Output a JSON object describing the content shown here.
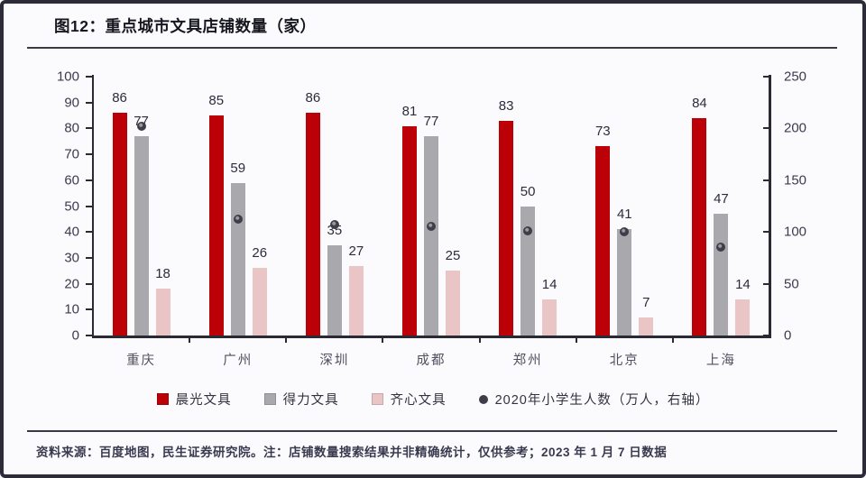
{
  "figure": {
    "title": "图12：重点城市文具店铺数量（家）",
    "footnote": "资料来源：百度地图，民生证券研究院。注：店铺数量搜索结果并非精确统计，仅供参考；2023 年 1 月 7 日数据"
  },
  "colors": {
    "red": "#bb0007",
    "gray": "#a8a8ad",
    "pink": "#eac5c6",
    "dot": "#3e3e48",
    "axis_line": "#2a2a34",
    "tick_text": "#3b3b4e",
    "value_text": "#2c2c3c",
    "background": "#fbfbfe"
  },
  "chart_data": {
    "type": "bar",
    "title": "图12：重点城市文具店铺数量（家）",
    "categories": [
      "重庆",
      "广州",
      "深圳",
      "成都",
      "郑州",
      "北京",
      "上海"
    ],
    "series": [
      {
        "name": "晨光文具",
        "type": "bar",
        "axis": "left",
        "color_key": "red",
        "values": [
          86,
          85,
          86,
          81,
          83,
          73,
          84
        ]
      },
      {
        "name": "得力文具",
        "type": "bar",
        "axis": "left",
        "color_key": "gray",
        "values": [
          77,
          59,
          35,
          77,
          50,
          41,
          47
        ]
      },
      {
        "name": "齐心文具",
        "type": "bar",
        "axis": "left",
        "color_key": "pink",
        "values": [
          18,
          26,
          27,
          25,
          14,
          7,
          14
        ]
      },
      {
        "name": "2020年小学生人数（万人，右轴）",
        "type": "scatter",
        "axis": "right",
        "color_key": "dot",
        "values": [
          202,
          112,
          107,
          105,
          101,
          100,
          85
        ]
      }
    ],
    "left_axis": {
      "min": 0,
      "max": 100,
      "step": 10
    },
    "right_axis": {
      "min": 0,
      "max": 250,
      "step": 50
    },
    "grid": false,
    "legend_position": "bottom",
    "bar_value_labels": true
  }
}
